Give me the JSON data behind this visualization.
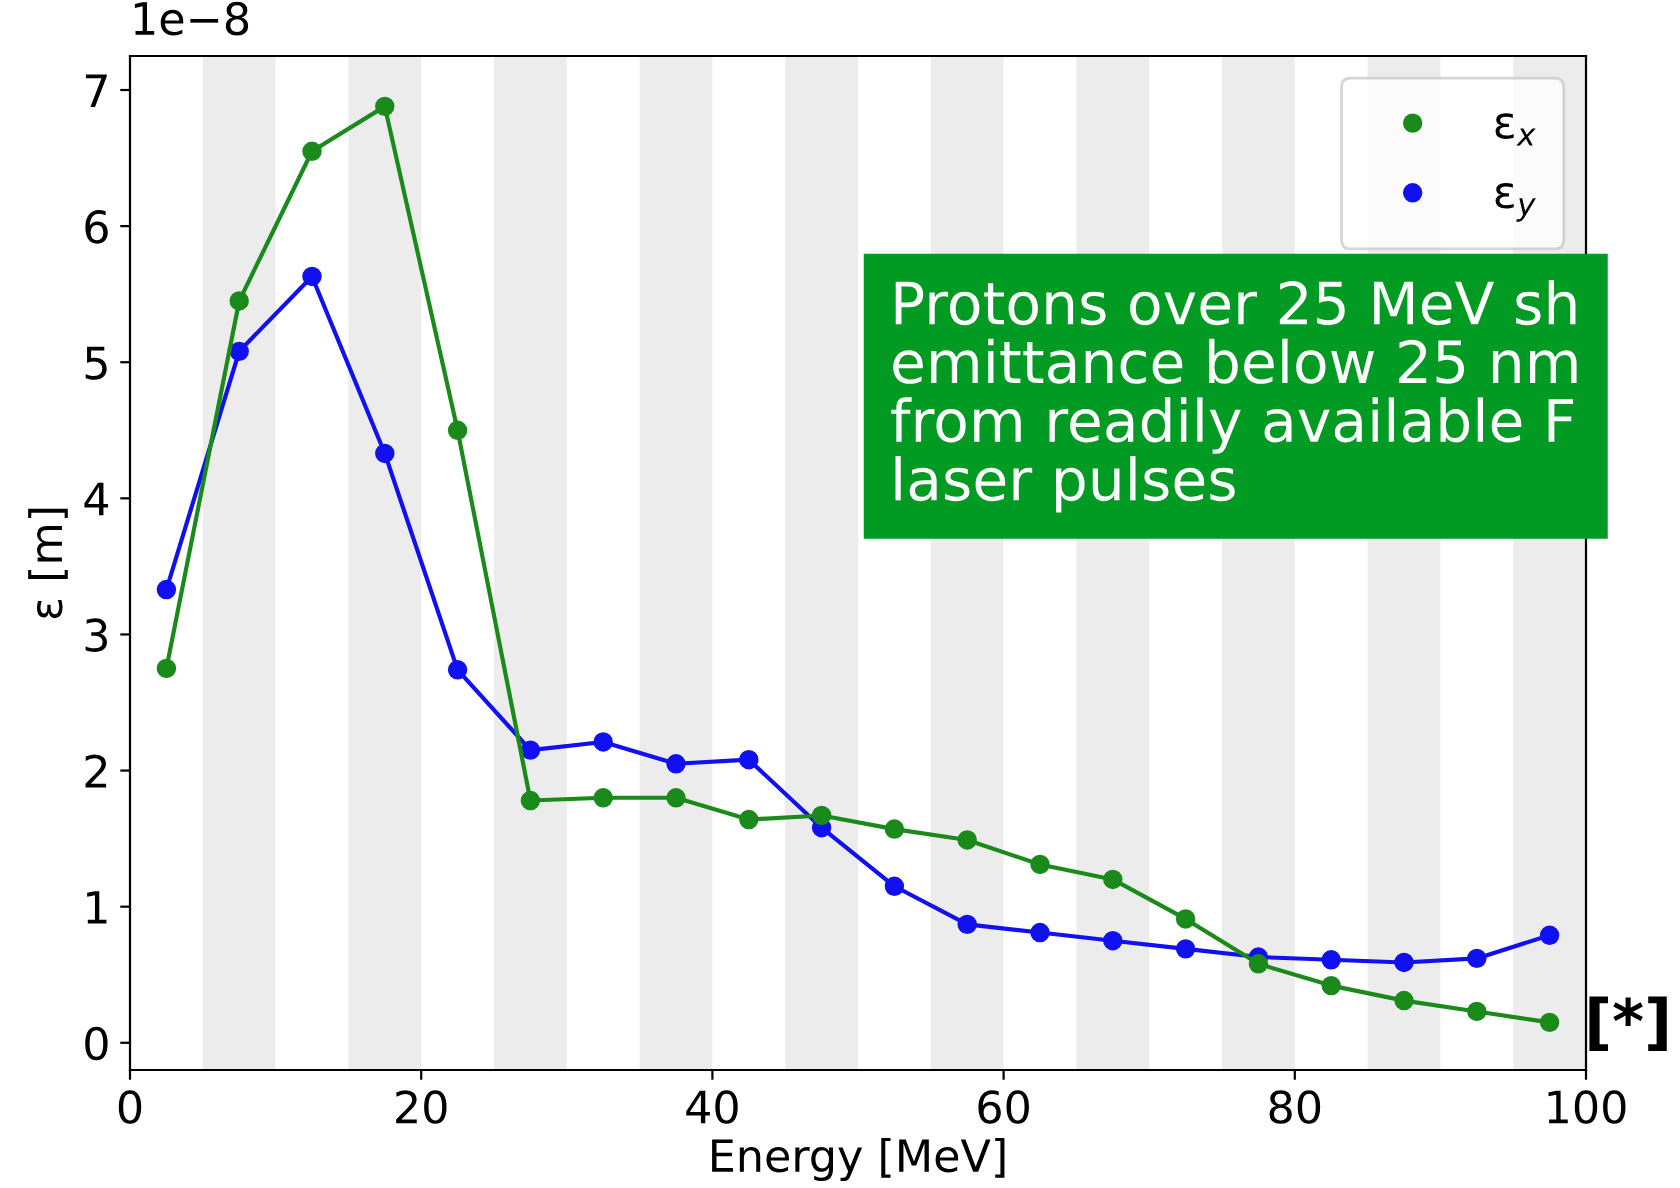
{
  "chart_data": {
    "type": "line",
    "xlabel": "Energy [MeV]",
    "ylabel": "ε [m]",
    "x": [
      2.5,
      7.5,
      12.5,
      17.5,
      22.5,
      27.5,
      32.5,
      37.5,
      42.5,
      47.5,
      52.5,
      57.5,
      62.5,
      67.5,
      72.5,
      77.5,
      82.5,
      87.5,
      92.5,
      97.5
    ],
    "series": [
      {
        "name": "ε$_{x}$",
        "color": "#1a8a1a",
        "values": [
          2.75,
          5.45,
          6.55,
          6.88,
          4.5,
          1.78,
          1.8,
          1.8,
          1.64,
          1.67,
          1.57,
          1.49,
          1.31,
          1.2,
          0.91,
          0.58,
          0.42,
          0.31,
          0.23,
          0.15
        ]
      },
      {
        "name": "ε$_{y}$",
        "color": "#1010f0",
        "values": [
          3.33,
          5.08,
          5.63,
          4.33,
          2.74,
          2.15,
          2.21,
          2.05,
          2.08,
          1.58,
          1.15,
          0.87,
          0.81,
          0.75,
          0.69,
          0.63,
          0.61,
          0.59,
          0.62,
          0.79
        ]
      }
    ],
    "xlim": [
      0,
      100
    ],
    "xticks": [
      0,
      20,
      40,
      60,
      80,
      100
    ],
    "ylim": [
      -0.2,
      7.25
    ],
    "yticks": [
      0,
      1,
      2,
      3,
      4,
      5,
      6,
      7
    ],
    "marker": "circle",
    "legend": "top right",
    "grid": false,
    "bands": [
      {
        "axis": "x",
        "from": 5,
        "to": 10,
        "color": "#ececec"
      },
      {
        "axis": "x",
        "from": 15,
        "to": 20,
        "color": "#ececec"
      },
      {
        "axis": "x",
        "from": 25,
        "to": 30,
        "color": "#ececec"
      },
      {
        "axis": "x",
        "from": 35,
        "to": 40,
        "color": "#ececec"
      },
      {
        "axis": "x",
        "from": 45,
        "to": 50,
        "color": "#ececec"
      },
      {
        "axis": "x",
        "from": 55,
        "to": 60,
        "color": "#ececec"
      },
      {
        "axis": "x",
        "from": 65,
        "to": 70,
        "color": "#ececec"
      },
      {
        "axis": "x",
        "from": 75,
        "to": 80,
        "color": "#ececec"
      },
      {
        "axis": "x",
        "from": 85,
        "to": 90,
        "color": "#ececec"
      },
      {
        "axis": "x",
        "from": 95,
        "to": 100,
        "color": "#ececec"
      }
    ],
    "annotations": [
      "1e−8",
      "Protons over 25 MeV sh\nemittance below 25 nm\nfrom readily available F\nlaser pulses",
      "[*]"
    ]
  }
}
